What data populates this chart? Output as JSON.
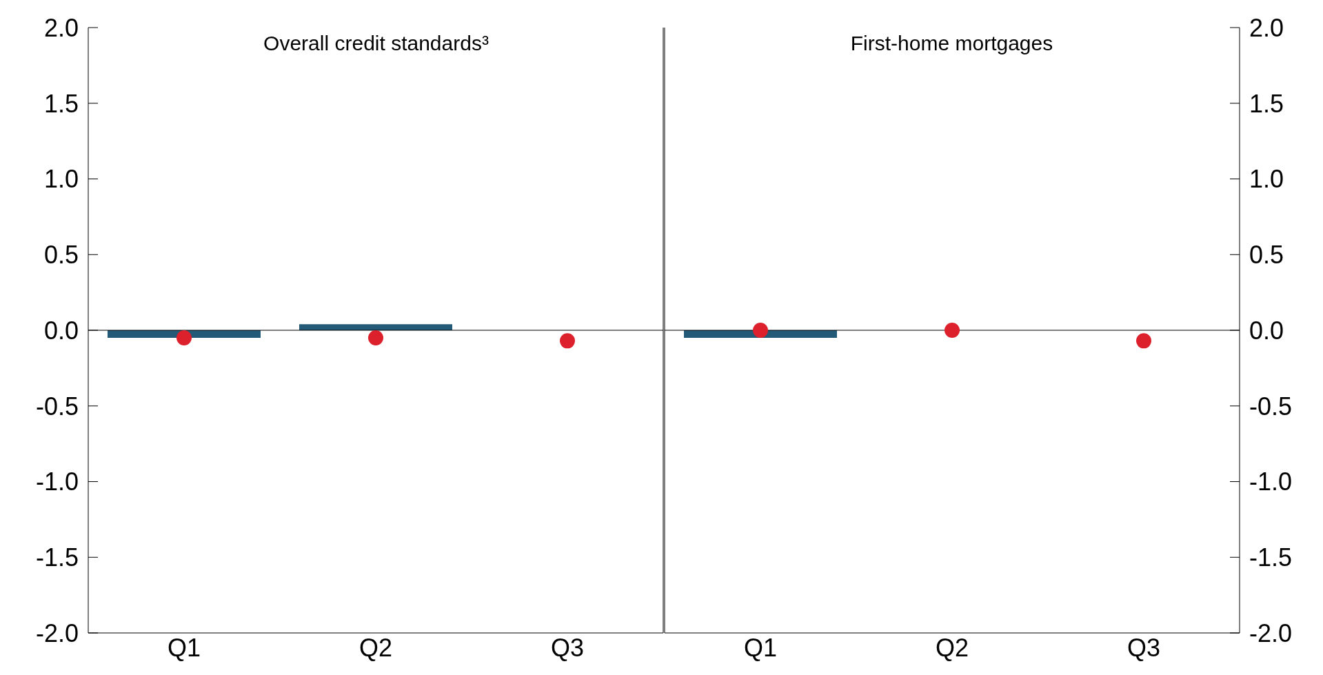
{
  "chart_data": [
    {
      "type": "bar",
      "title": "Overall credit standards³",
      "categories": [
        "Q1",
        "Q2",
        "Q3"
      ],
      "series": [
        {
          "color": "#225a78",
          "values": [
            -0.05,
            0.04,
            null
          ]
        },
        {
          "type": "scatter",
          "color": "#dc202c",
          "x": [
            "Q1",
            "Q2",
            "Q3"
          ],
          "values": [
            -0.05,
            -0.05,
            -0.07
          ]
        }
      ],
      "ylim": [
        -2,
        2
      ],
      "yticks": [
        {
          "value": -2,
          "label": "-2.0"
        },
        {
          "value": -1.5,
          "label": "-1.5"
        },
        {
          "value": -1,
          "label": "-1.0"
        },
        {
          "value": -0.5,
          "label": "-0.5"
        },
        {
          "value": 0,
          "label": "0.0"
        },
        {
          "value": 0.5,
          "label": "0.5"
        },
        {
          "value": 1,
          "label": "1.0"
        },
        {
          "value": 1.5,
          "label": "1.5"
        },
        {
          "value": 2,
          "label": "2.0"
        }
      ],
      "ref_lines": [
        {
          "axis": "y",
          "value": 0
        }
      ],
      "grid": false,
      "legend": false
    },
    {
      "type": "bar",
      "title": "First-home mortgages",
      "categories": [
        "Q1",
        "Q2",
        "Q3"
      ],
      "series": [
        {
          "color": "#225a78",
          "axis": "y2",
          "values": [
            -0.05,
            null,
            null
          ]
        },
        {
          "type": "scatter",
          "color": "#dc202c",
          "axis": "y2",
          "x": [
            "Q1",
            "Q2",
            "Q3"
          ],
          "values": [
            0,
            0,
            -0.07
          ]
        }
      ],
      "y2lim": [
        -2,
        2
      ],
      "y2ticks": [
        {
          "value": -2,
          "label": "-2.0"
        },
        {
          "value": -1.5,
          "label": "-1.5"
        },
        {
          "value": -1,
          "label": "-1.0"
        },
        {
          "value": -0.5,
          "label": "-0.5"
        },
        {
          "value": 0,
          "label": "0.0"
        },
        {
          "value": 0.5,
          "label": "0.5"
        },
        {
          "value": 1,
          "label": "1.0"
        },
        {
          "value": 1.5,
          "label": "1.5"
        },
        {
          "value": 2,
          "label": "2.0"
        }
      ],
      "ref_lines": [
        {
          "axis": "y2",
          "value": 0
        }
      ],
      "grid": false,
      "legend": false
    }
  ]
}
